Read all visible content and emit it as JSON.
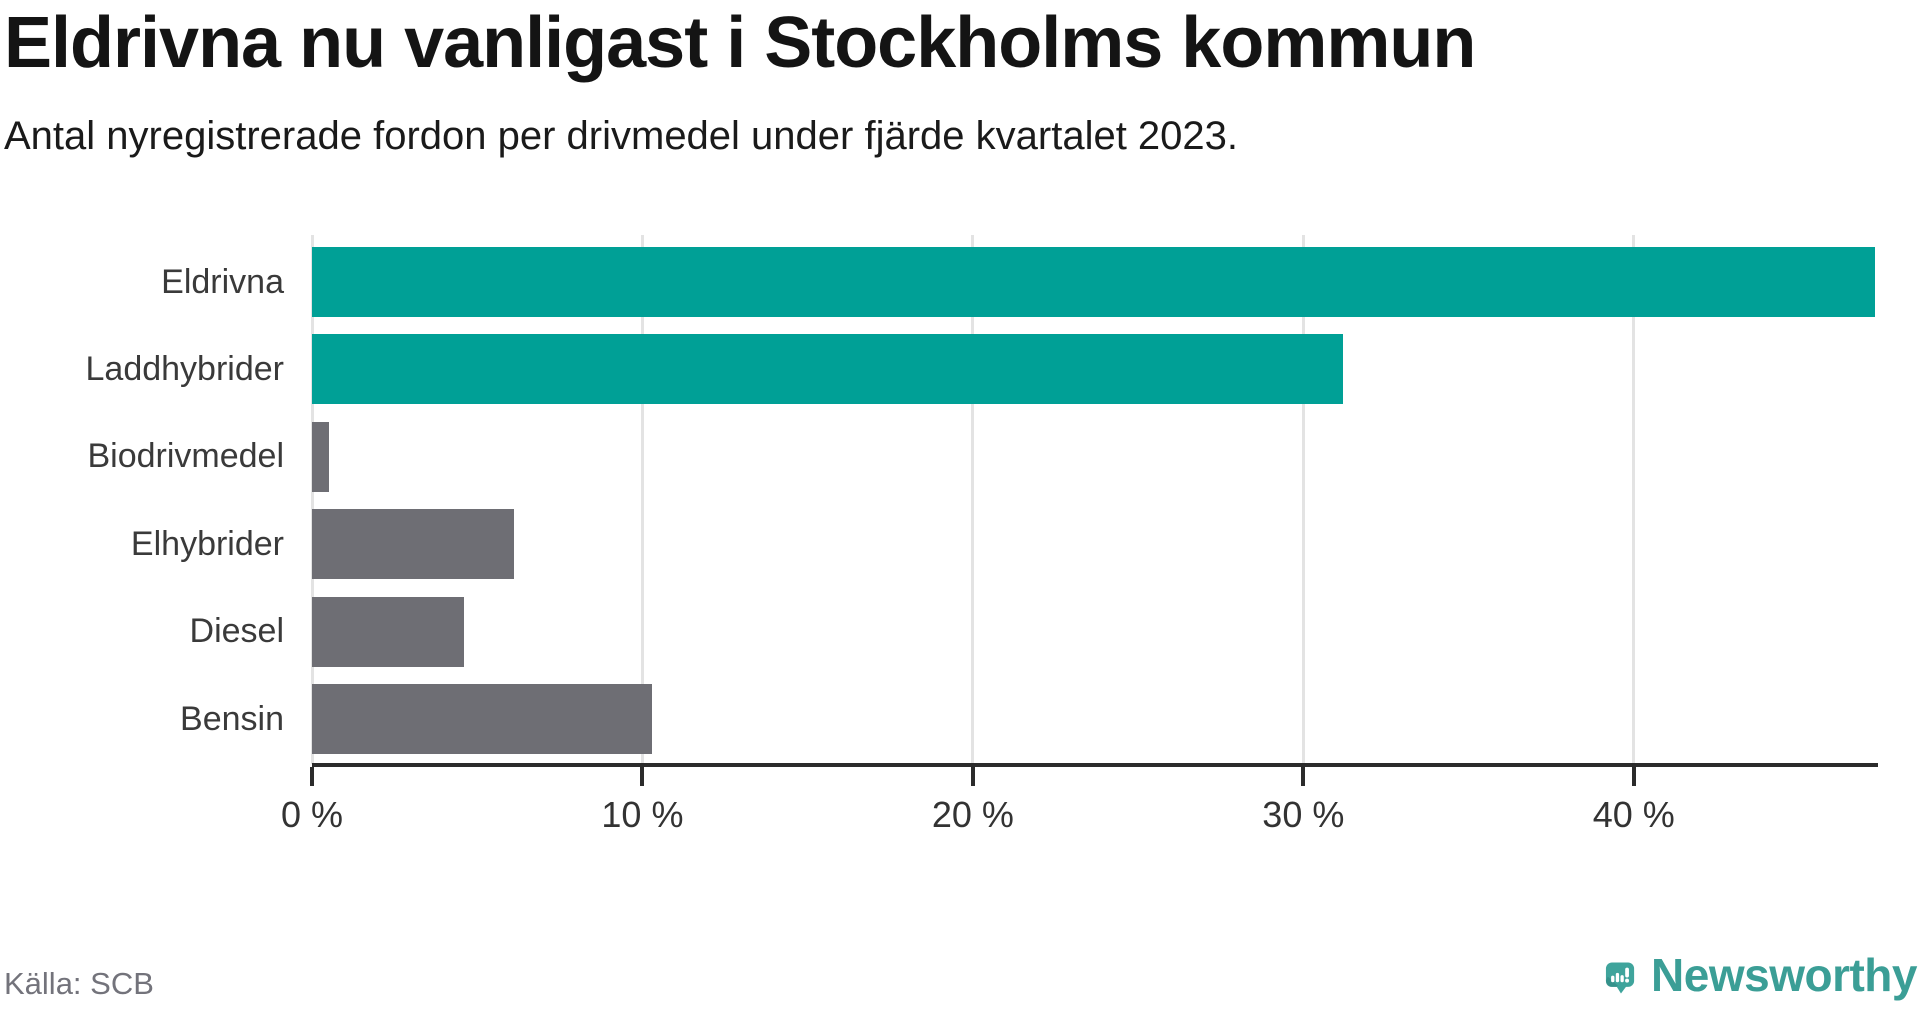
{
  "chart_data": {
    "type": "bar",
    "orientation": "horizontal",
    "title": "Eldrivna nu vanligast i Stockholms kommun",
    "subtitle": "Antal nyregistrerade fordon per drivmedel under fjärde kvartalet 2023.",
    "categories": [
      "Eldrivna",
      "Laddhybrider",
      "Biodrivmedel",
      "Elhybrider",
      "Diesel",
      "Bensin"
    ],
    "values": [
      47.3,
      31.2,
      0.5,
      6.1,
      4.6,
      10.3
    ],
    "unit": "%",
    "xlim": [
      0,
      47.3
    ],
    "x_tick_values": [
      0,
      10,
      20,
      30,
      40
    ],
    "x_tick_labels": [
      "0 %",
      "10 %",
      "20 %",
      "30 %",
      "40 %"
    ],
    "grid": true,
    "bar_colors": [
      "#00a096",
      "#00a096",
      "#6e6e74",
      "#6e6e74",
      "#6e6e74",
      "#6e6e74"
    ],
    "highlight_color": "#00a096",
    "default_color": "#6e6e74",
    "gridline_color": "#e3e3e3",
    "axis_color": "#2b2b2b"
  },
  "footer": {
    "source": "Källa: SCB",
    "brand": "Newsworthy",
    "brand_color": "#3b9e96"
  }
}
